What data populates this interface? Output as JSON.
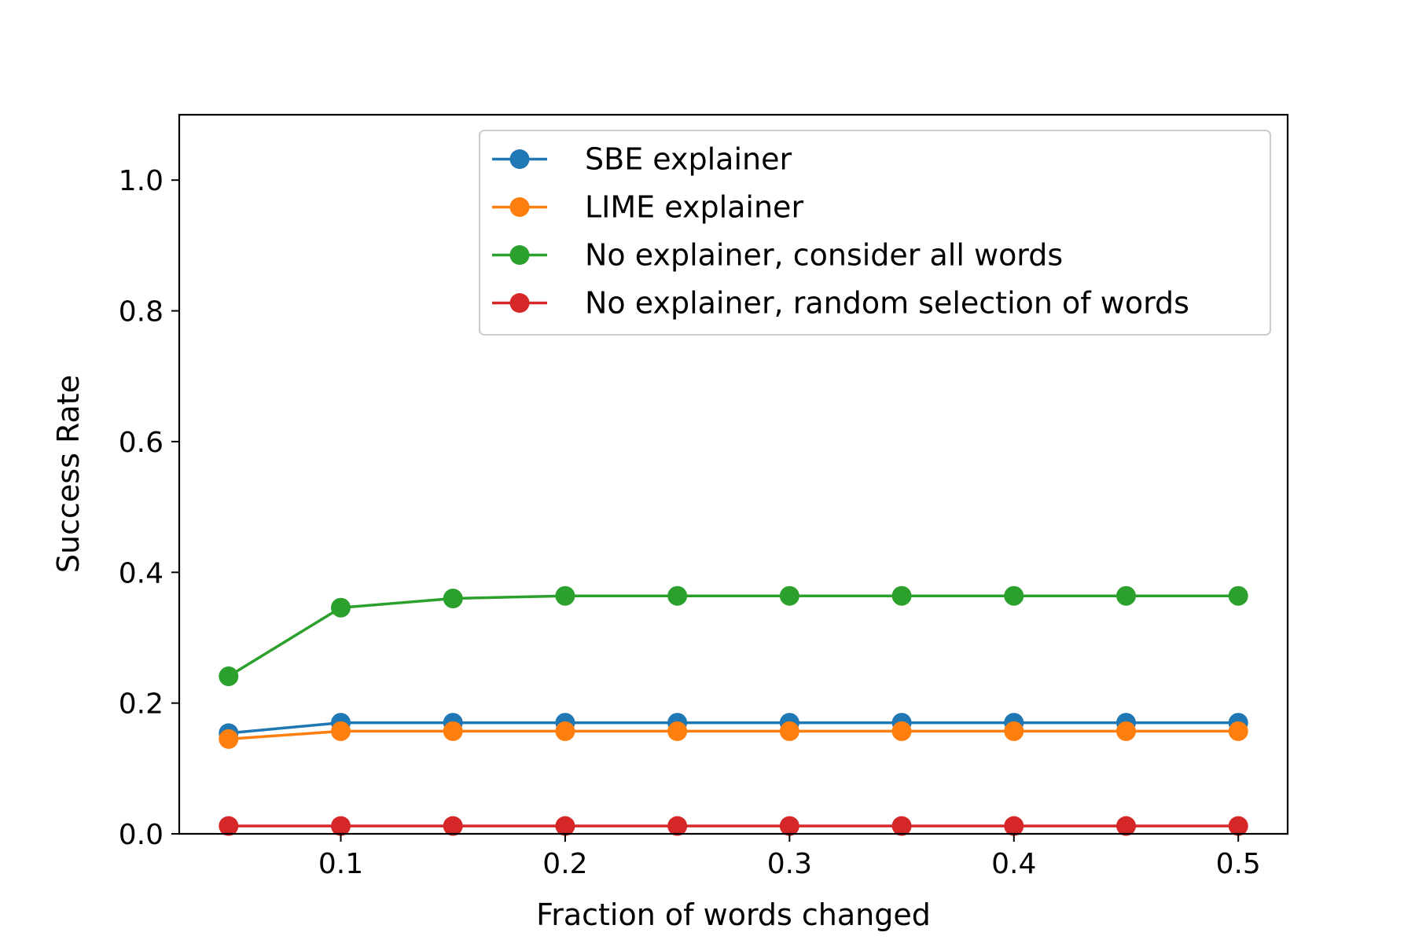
{
  "chart_data": {
    "type": "line",
    "title": "",
    "xlabel": "Fraction of words changed",
    "ylabel": "Success Rate",
    "xlim": [
      0.028,
      0.522
    ],
    "ylim": [
      0.0,
      1.1
    ],
    "xticks": [
      0.1,
      0.2,
      0.3,
      0.4,
      0.5
    ],
    "xtick_labels": [
      "0.1",
      "0.2",
      "0.3",
      "0.4",
      "0.5"
    ],
    "yticks": [
      0.0,
      0.2,
      0.4,
      0.6,
      0.8,
      1.0
    ],
    "ytick_labels": [
      "0.0",
      "0.2",
      "0.4",
      "0.6",
      "0.8",
      "1.0"
    ],
    "grid": false,
    "legend_position": "top-right",
    "x": [
      0.05,
      0.1,
      0.15,
      0.2,
      0.25,
      0.3,
      0.35,
      0.4,
      0.45,
      0.5
    ],
    "series": [
      {
        "name": "SBE explainer",
        "color": "#1f77b4",
        "values": [
          0.154,
          0.17,
          0.17,
          0.17,
          0.17,
          0.17,
          0.17,
          0.17,
          0.17,
          0.17
        ]
      },
      {
        "name": "LIME explainer",
        "color": "#ff7f0e",
        "values": [
          0.145,
          0.157,
          0.157,
          0.157,
          0.157,
          0.157,
          0.157,
          0.157,
          0.157,
          0.157
        ]
      },
      {
        "name": "No explainer, consider all words",
        "color": "#2ca02c",
        "values": [
          0.241,
          0.346,
          0.36,
          0.364,
          0.364,
          0.364,
          0.364,
          0.364,
          0.364,
          0.364
        ]
      },
      {
        "name": "No explainer, random selection of words",
        "color": "#d62728",
        "values": [
          0.012,
          0.012,
          0.012,
          0.012,
          0.012,
          0.012,
          0.012,
          0.012,
          0.012,
          0.012
        ]
      }
    ]
  }
}
